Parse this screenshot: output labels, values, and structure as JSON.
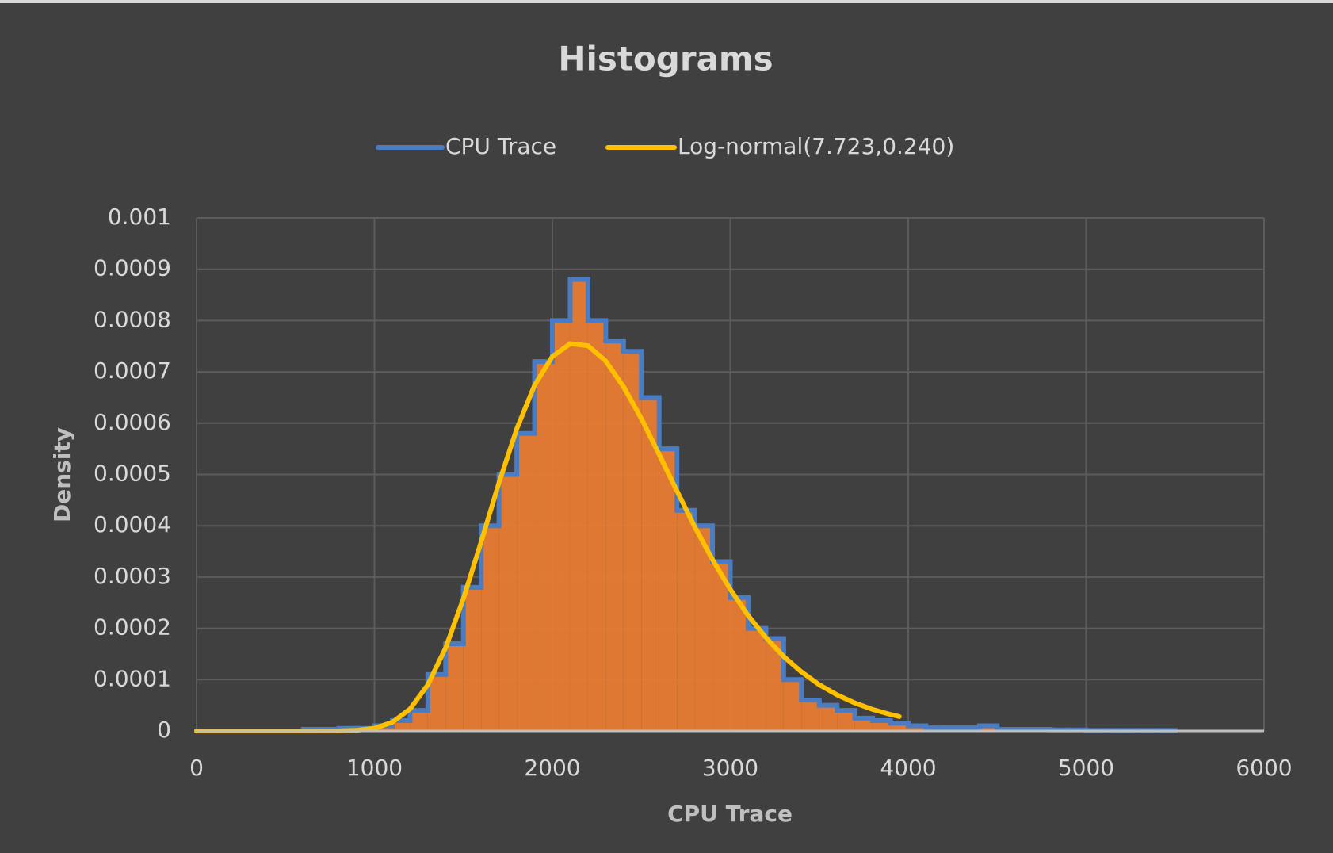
{
  "chart_data": {
    "type": "histogram",
    "title": "Histograms",
    "x_label": "CPU Trace",
    "y_label": "Density",
    "xlim": [
      0,
      6000
    ],
    "xticks": [
      0,
      1000,
      2000,
      3000,
      4000,
      5000,
      6000
    ],
    "ylim": [
      0,
      0.001
    ],
    "yticks": [
      0,
      0.0001,
      0.0002,
      0.0003,
      0.0004,
      0.0005,
      0.0006,
      0.0007,
      0.0008,
      0.0009,
      0.001
    ],
    "grid": true,
    "legend": "top",
    "series": [
      {
        "name": "CPU Trace",
        "type": "histogram",
        "color": "#4a7cc4",
        "fill_color": "#ed7d31",
        "bins": [
          0,
          100,
          200,
          300,
          400,
          500,
          600,
          700,
          800,
          900,
          1000,
          1100,
          1200,
          1300,
          1400,
          1500,
          1600,
          1700,
          1800,
          1900,
          2000,
          2100,
          2200,
          2300,
          2400,
          2500,
          2600,
          2700,
          2800,
          2900,
          3000,
          3100,
          3200,
          3300,
          3400,
          3500,
          3600,
          3700,
          3800,
          3900,
          4000,
          4100,
          4200,
          4300,
          4400,
          4500,
          4600,
          4700,
          4800,
          4900,
          5000,
          5100,
          5200,
          5300,
          5400,
          5500
        ],
        "values": [
          0,
          0,
          0,
          0,
          0,
          0,
          3e-06,
          3e-06,
          5e-06,
          5e-06,
          1e-05,
          2e-05,
          4e-05,
          0.00011,
          0.00017,
          0.00028,
          0.0004,
          0.0005,
          0.00058,
          0.00072,
          0.0008,
          0.00088,
          0.0008,
          0.00076,
          0.00074,
          0.00065,
          0.00055,
          0.00043,
          0.0004,
          0.00033,
          0.00026,
          0.0002,
          0.00018,
          0.0001,
          6e-05,
          5e-05,
          4e-05,
          2.5e-05,
          2e-05,
          1.5e-05,
          1e-05,
          6e-06,
          6e-06,
          6e-06,
          1e-05,
          3e-06,
          3e-06,
          3e-06,
          2e-06,
          2e-06,
          1e-06,
          1e-06,
          1e-06,
          1e-06,
          1e-06
        ]
      },
      {
        "name": "Log-normal(7.723,0.240)",
        "type": "line",
        "color": "#ffc000",
        "x": [
          0,
          500,
          800,
          900,
          1000,
          1100,
          1200,
          1300,
          1400,
          1500,
          1600,
          1700,
          1800,
          1900,
          2000,
          2100,
          2200,
          2300,
          2400,
          2500,
          2600,
          2700,
          2800,
          2900,
          3000,
          3100,
          3200,
          3300,
          3400,
          3500,
          3600,
          3700,
          3800,
          3900,
          3950
        ],
        "values": [
          0,
          0,
          2e-07,
          1.2e-06,
          5.2e-06,
          1.68e-05,
          4.28e-05,
          9e-05,
          0.000162,
          0.000258,
          0.000369,
          0.000484,
          0.000589,
          0.000674,
          0.00073,
          0.000755,
          0.000751,
          0.000721,
          0.000671,
          0.000609,
          0.000539,
          0.000468,
          0.000398,
          0.000334,
          0.000276,
          0.000225,
          0.000182,
          0.000145,
          0.000115,
          9e-05,
          7.03e-05,
          5.45e-05,
          4.19e-05,
          3.21e-05,
          2.8e-05
        ]
      }
    ]
  }
}
